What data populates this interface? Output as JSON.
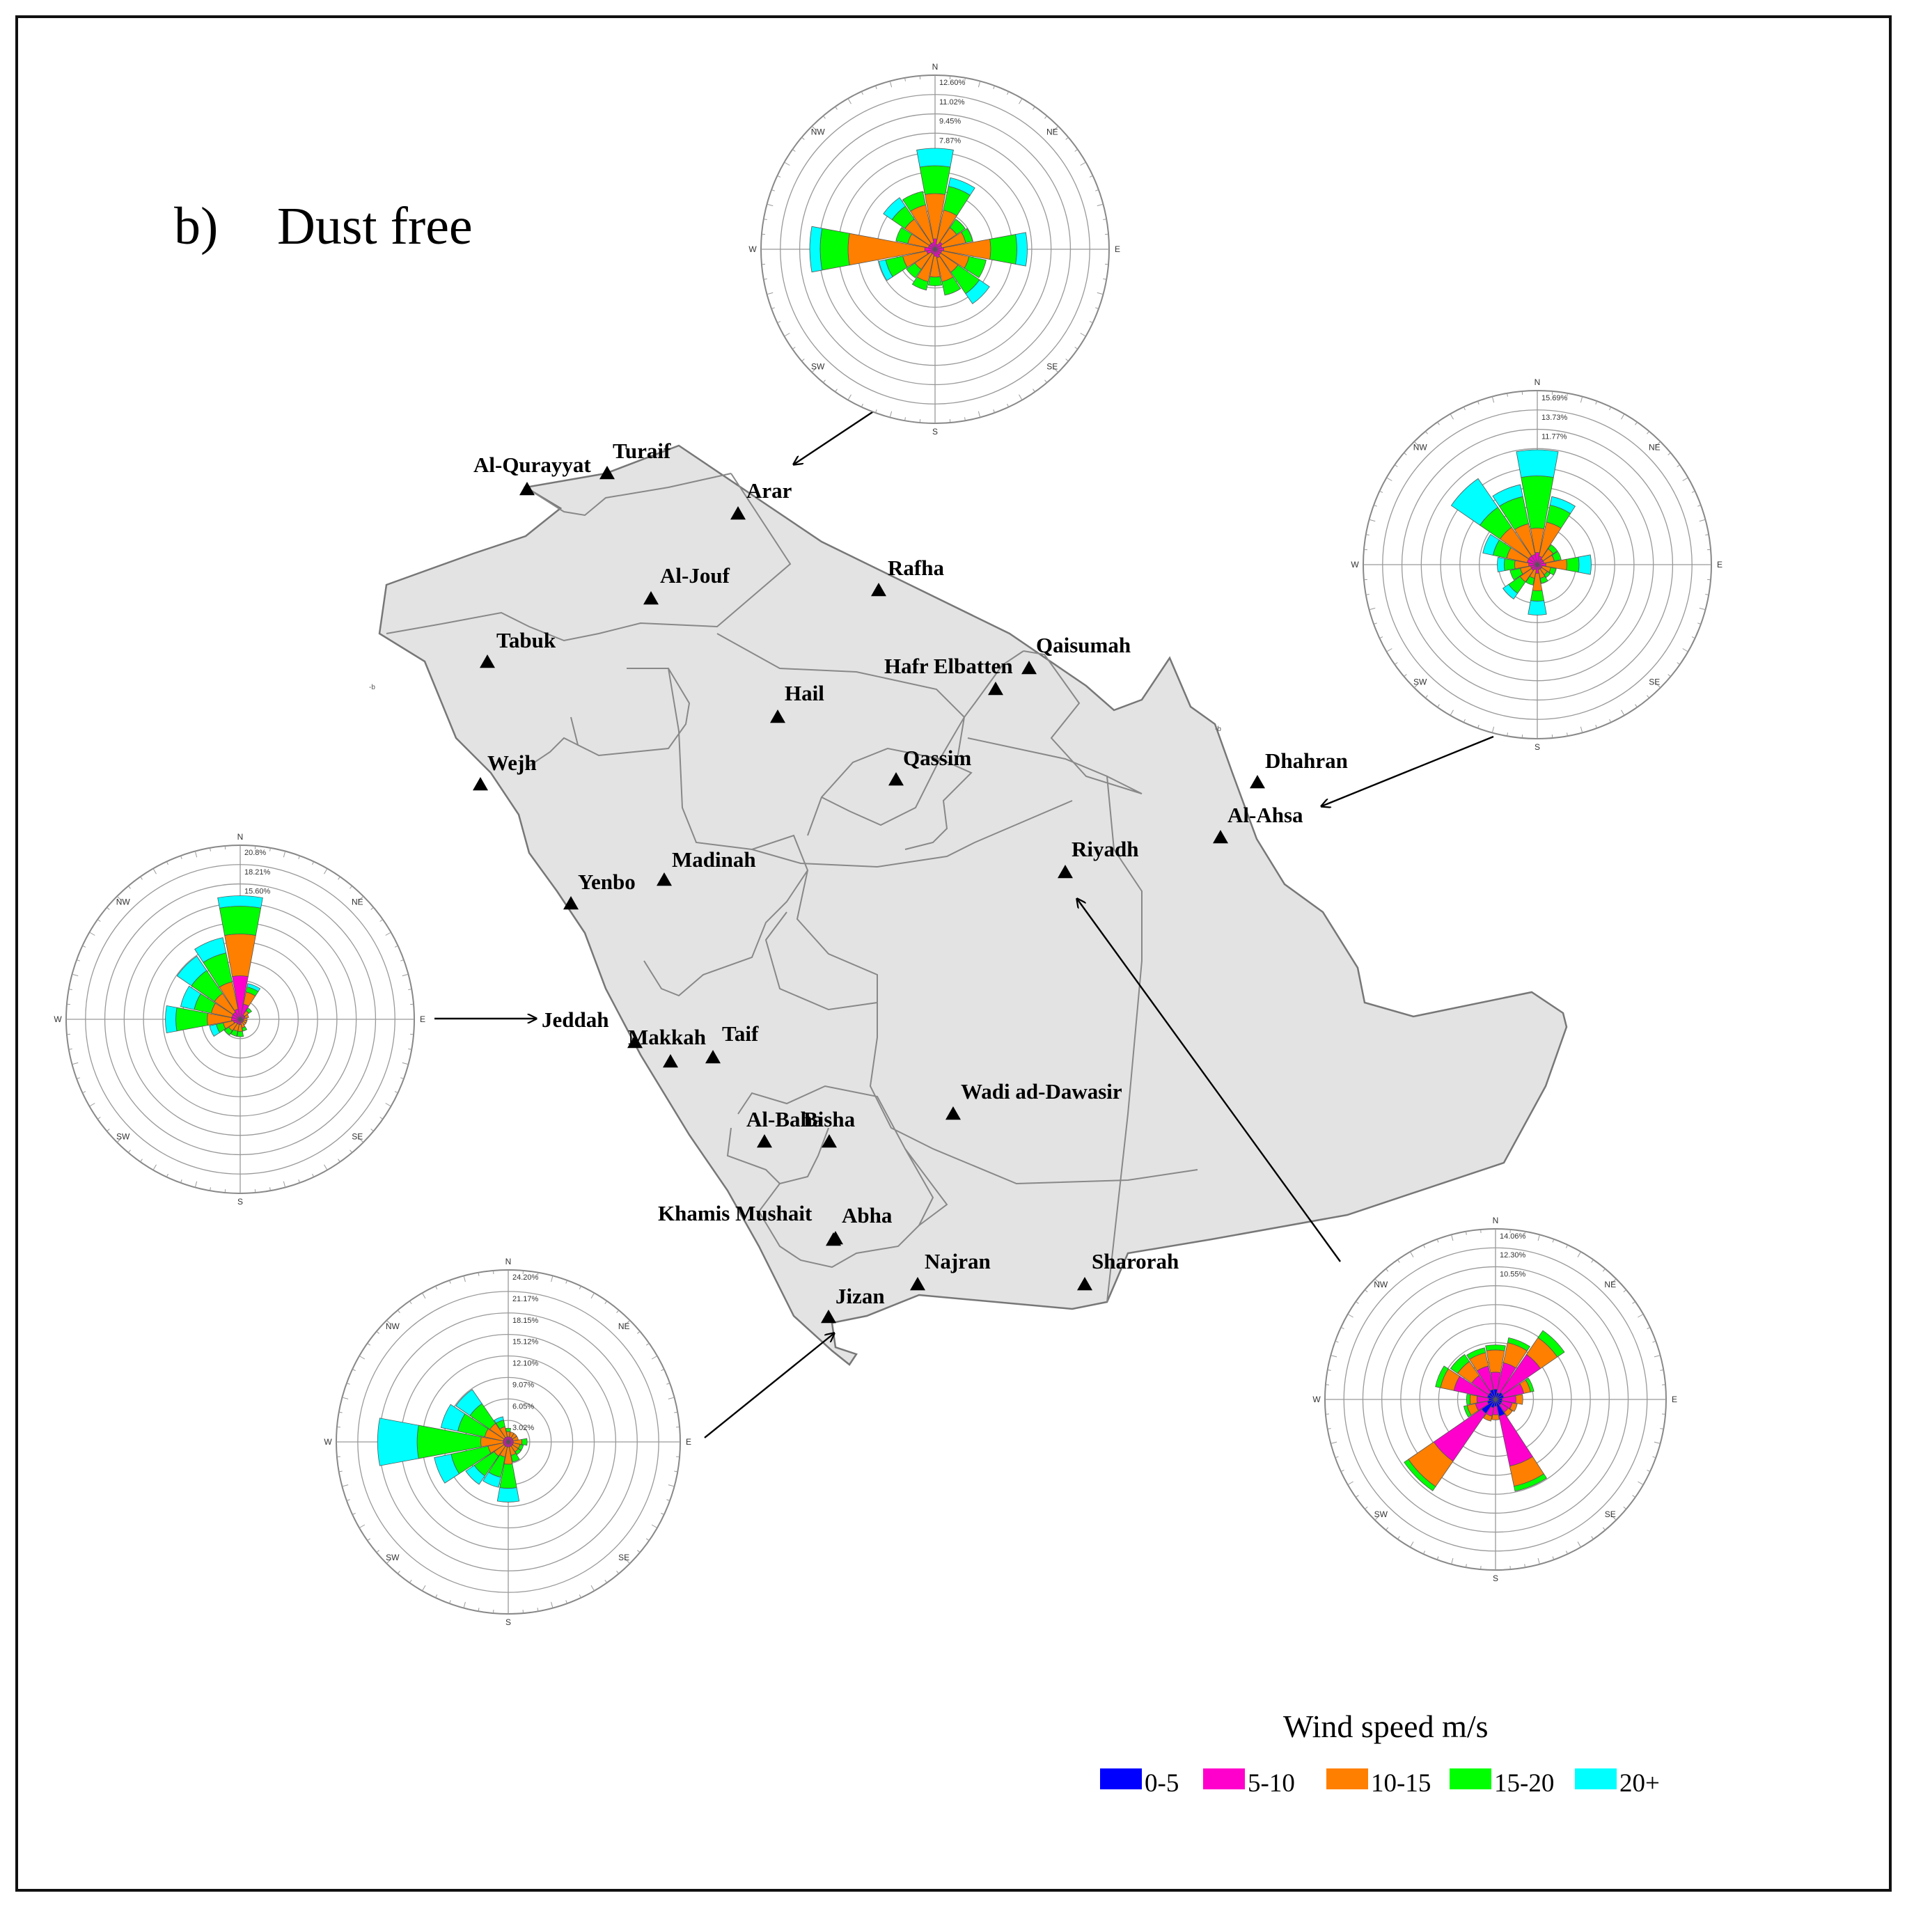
{
  "title": {
    "label": "b)",
    "text": "Dust free"
  },
  "cities": [
    {
      "name": "Al-Qurayyat"
    },
    {
      "name": "Turaif"
    },
    {
      "name": "Arar"
    },
    {
      "name": "Al-Jouf"
    },
    {
      "name": "Rafha"
    },
    {
      "name": "Tabuk"
    },
    {
      "name": "Qaisumah"
    },
    {
      "name": "Hafr Elbatten"
    },
    {
      "name": "Hail"
    },
    {
      "name": "Qassim"
    },
    {
      "name": "Wejh"
    },
    {
      "name": "Dhahran"
    },
    {
      "name": "Al-Ahsa"
    },
    {
      "name": "Riyadh"
    },
    {
      "name": "Madinah"
    },
    {
      "name": "Yenbo"
    },
    {
      "name": "Jeddah"
    },
    {
      "name": "Makkah"
    },
    {
      "name": "Taif"
    },
    {
      "name": "Wadi ad-Dawasir"
    },
    {
      "name": "Al-Baha"
    },
    {
      "name": "Bisha"
    },
    {
      "name": "Khamis Mushait"
    },
    {
      "name": "Abha"
    },
    {
      "name": "Najran"
    },
    {
      "name": "Sharorah"
    },
    {
      "name": "Jizan"
    }
  ],
  "legend": {
    "title": "Wind speed m/s",
    "bins": [
      {
        "label": "0-5",
        "color": "#0000ff"
      },
      {
        "label": "5-10",
        "color": "#ff00cc"
      },
      {
        "label": "10-15",
        "color": "#ff7f00"
      },
      {
        "label": "15-20",
        "color": "#00ff00"
      },
      {
        "label": "20+",
        "color": "#00ffff"
      }
    ]
  },
  "wind_roses": [
    {
      "station": "Turaif",
      "scale_labels": [
        "12.60%",
        "11.02%",
        "9.45%",
        "7.87%"
      ],
      "directions": [
        "N",
        "NE",
        "E",
        "SE",
        "S",
        "SW",
        "W",
        "NW"
      ]
    },
    {
      "station": "Dhahran",
      "scale_labels": [
        "15.69%",
        "13.73%",
        "11.77%"
      ],
      "directions": [
        "N",
        "NE",
        "E",
        "SE",
        "S",
        "SW",
        "W",
        "NW"
      ]
    },
    {
      "station": "Jeddah",
      "scale_labels": [
        "20.8%",
        "18.21%",
        "15.60%"
      ],
      "directions": [
        "N",
        "NE",
        "E",
        "SE",
        "S",
        "SW",
        "W",
        "NW"
      ]
    },
    {
      "station": "Jizan",
      "scale_labels": [
        "24.20%",
        "21.17%",
        "18.15%",
        "15.12%",
        "12.10%",
        "9.07%",
        "6.05%",
        "3.02%"
      ],
      "directions": [
        "N",
        "NE",
        "E",
        "SE",
        "S",
        "SW",
        "W",
        "NW"
      ]
    },
    {
      "station": "Riyadh",
      "scale_labels": [
        "14.06%",
        "12.30%",
        "10.55%"
      ],
      "directions": [
        "N",
        "NE",
        "E",
        "SE",
        "S",
        "SW",
        "W",
        "NW"
      ]
    }
  ]
}
